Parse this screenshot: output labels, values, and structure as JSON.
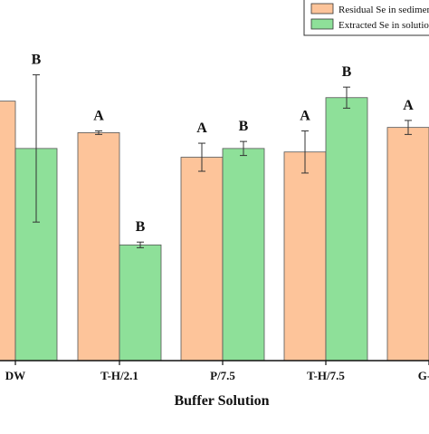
{
  "chart_data": {
    "type": "bar",
    "xlabel": "Buffer Solution",
    "ylabel": "",
    "categories": [
      "DW",
      "T-H/2.1",
      "P/7.5",
      "T-H/7.5",
      "G-H"
    ],
    "ylim": [
      0,
      100
    ],
    "grid": false,
    "legend_position": "top-right",
    "series": [
      {
        "name": "Residual Se in sediment",
        "color": "#fdc49a",
        "values": [
          74,
          65,
          58,
          59.5,
          66.5
        ],
        "errors": [
          0,
          0.5,
          4,
          6,
          2
        ],
        "letters": [
          "A",
          "A",
          "A",
          "A",
          "A"
        ]
      },
      {
        "name": "Extracted Se in solution",
        "color": "#8ee099",
        "values": [
          60.5,
          33,
          60.5,
          75,
          null
        ],
        "errors": [
          21,
          0.8,
          2,
          3,
          null
        ],
        "letters": [
          "B",
          "B",
          "B",
          "B",
          null
        ]
      }
    ]
  }
}
